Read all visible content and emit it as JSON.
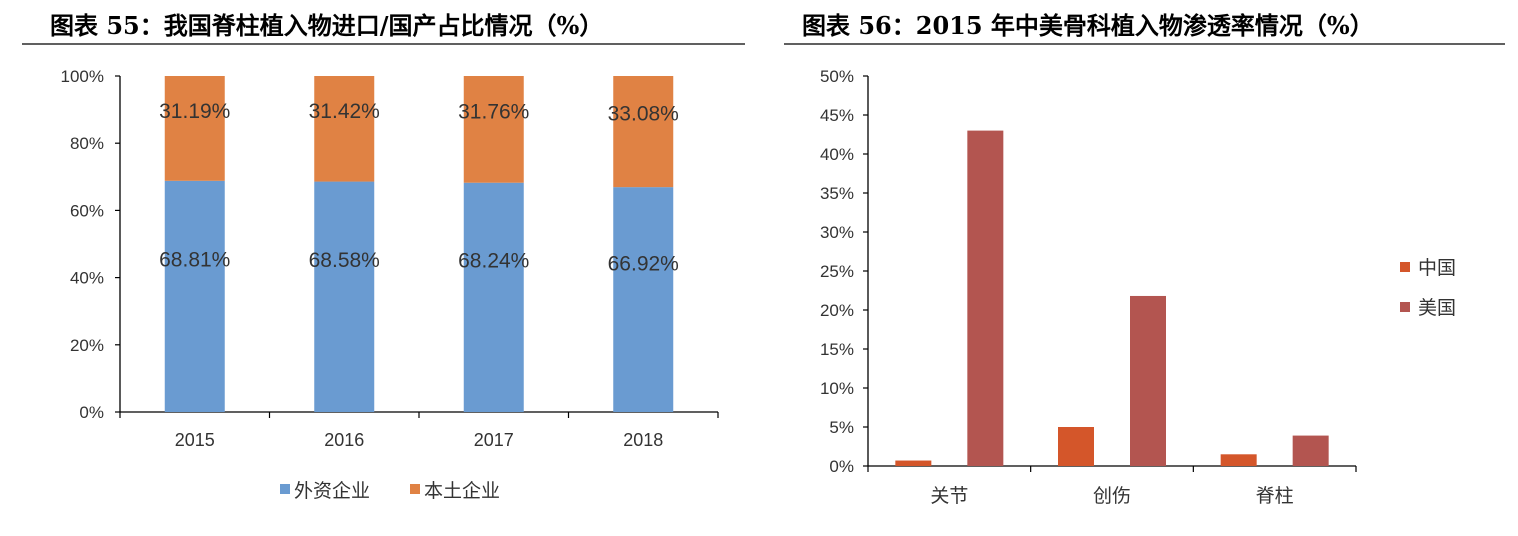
{
  "chart_data": [
    {
      "type": "bar",
      "stacked": true,
      "title": "图表 55：我国脊柱植入物进口/国产占比情况（%）",
      "categories": [
        "2015",
        "2016",
        "2017",
        "2018"
      ],
      "series": [
        {
          "name": "外资企业",
          "values": [
            68.81,
            68.58,
            68.24,
            66.92
          ],
          "labels": [
            "68.81%",
            "68.58%",
            "68.24%",
            "66.92%"
          ],
          "color": "#6a9bd1"
        },
        {
          "name": "本土企业",
          "values": [
            31.19,
            31.42,
            31.76,
            33.08
          ],
          "labels": [
            "31.19%",
            "31.42%",
            "31.76%",
            "33.08%"
          ],
          "color": "#e08244"
        }
      ],
      "ylim": [
        0,
        100
      ],
      "yticks": [
        0,
        20,
        40,
        60,
        80,
        100
      ],
      "ytick_labels": [
        "0%",
        "20%",
        "40%",
        "60%",
        "80%",
        "100%"
      ],
      "legend": "bottom",
      "grid": false
    },
    {
      "type": "bar",
      "title": "图表 56：2015 年中美骨科植入物渗透率情况（%）",
      "categories": [
        "关节",
        "创伤",
        "脊柱"
      ],
      "series": [
        {
          "name": "中国",
          "values": [
            0.7,
            5.0,
            1.5
          ],
          "color": "#d4562a"
        },
        {
          "name": "美国",
          "values": [
            43.0,
            21.8,
            3.9
          ],
          "color": "#b35550"
        }
      ],
      "ylim": [
        0,
        50
      ],
      "yticks": [
        0,
        5,
        10,
        15,
        20,
        25,
        30,
        35,
        40,
        45,
        50
      ],
      "ytick_labels": [
        "0%",
        "5%",
        "10%",
        "15%",
        "20%",
        "25%",
        "30%",
        "35%",
        "40%",
        "45%",
        "50%"
      ],
      "legend": "right",
      "grid": false
    }
  ]
}
